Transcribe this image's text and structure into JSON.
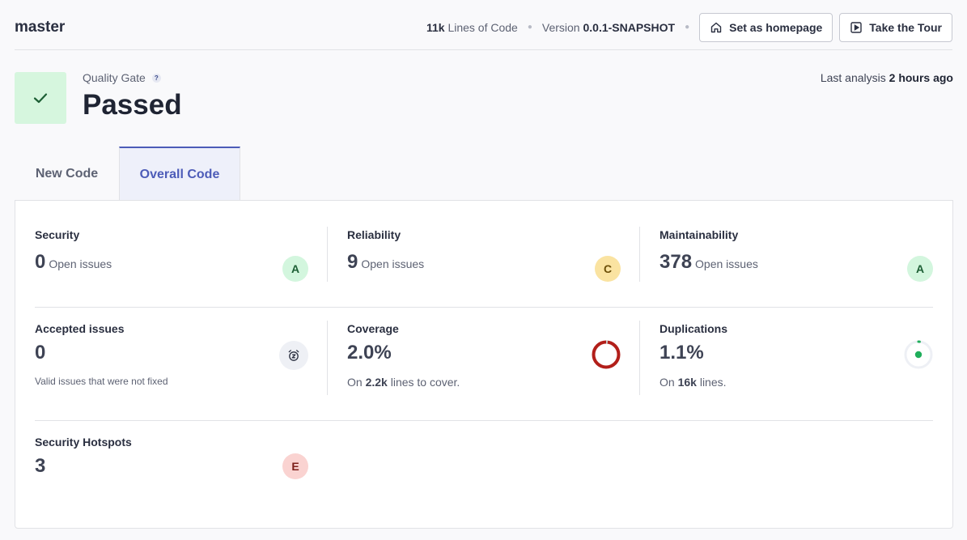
{
  "header": {
    "branch": "master",
    "loc_value": "11k",
    "loc_label": "Lines of Code",
    "version_label": "Version",
    "version_value": "0.0.1-SNAPSHOT",
    "set_homepage_label": "Set as homepage",
    "take_tour_label": "Take the Tour"
  },
  "quality_gate": {
    "label": "Quality Gate",
    "help": "?",
    "status": "Passed",
    "last_analysis_label": "Last analysis",
    "last_analysis_value": "2 hours ago"
  },
  "tabs": {
    "new_code": "New Code",
    "overall_code": "Overall Code"
  },
  "metrics": {
    "security": {
      "title": "Security",
      "value": "0",
      "unit": "Open issues",
      "rating": "A"
    },
    "reliability": {
      "title": "Reliability",
      "value": "9",
      "unit": "Open issues",
      "rating": "C"
    },
    "maintainability": {
      "title": "Maintainability",
      "value": "378",
      "unit": "Open issues",
      "rating": "A"
    },
    "accepted": {
      "title": "Accepted issues",
      "value": "0",
      "description": "Valid issues that were not fixed"
    },
    "coverage": {
      "title": "Coverage",
      "value": "2.0%",
      "sub_prefix": "On",
      "sub_value": "2.2k",
      "sub_suffix": "lines to cover.",
      "percent": 2.0
    },
    "duplications": {
      "title": "Duplications",
      "value": "1.1%",
      "sub_prefix": "On",
      "sub_value": "16k",
      "sub_suffix": "lines.",
      "percent": 1.1
    },
    "hotspots": {
      "title": "Security Hotspots",
      "value": "3",
      "rating": "E"
    }
  },
  "colors": {
    "accent": "#4d5cb8",
    "coverage_bad": "#b21f1a",
    "coverage_good": "#c4c4c4",
    "dup_good": "#1fae5b",
    "dup_track": "#eef0f5"
  }
}
